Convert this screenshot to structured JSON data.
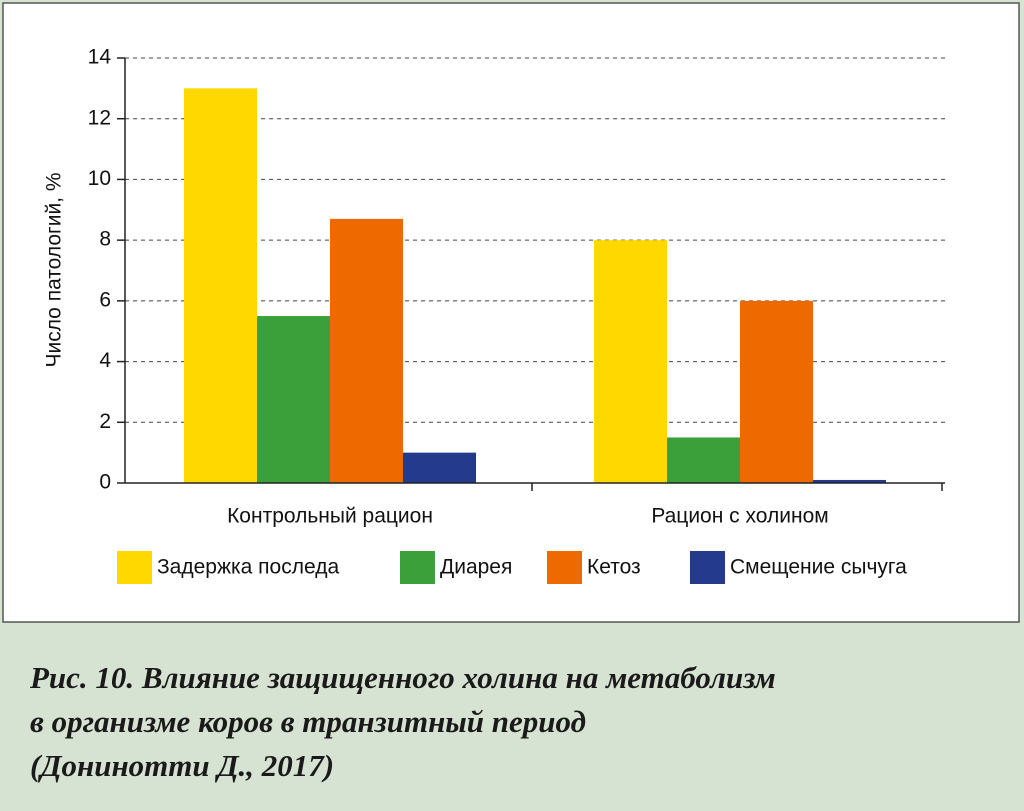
{
  "chart_data": {
    "type": "bar",
    "y_label": "Число патологий, %",
    "categories": [
      "Контрольный рацион",
      "Рацион с холином"
    ],
    "series": [
      {
        "name": "Задержка последа",
        "color": "#ffd800",
        "values": [
          13,
          8
        ]
      },
      {
        "name": "Диарея",
        "color": "#3ca03a",
        "values": [
          5.5,
          1.5
        ]
      },
      {
        "name": "Кетоз",
        "color": "#ee6a00",
        "values": [
          8.7,
          6
        ]
      },
      {
        "name": "Смещение сычуга",
        "color": "#243a8c",
        "values": [
          1,
          0.1
        ]
      }
    ],
    "ylim": [
      0,
      14
    ],
    "yticks": [
      0,
      2,
      4,
      6,
      8,
      10,
      12,
      14
    ],
    "grid": true,
    "legend": "bottom",
    "caption": [
      "Рис. 10. Влияние защищенного холина на метаболизм",
      "в организме коров в транзитный период",
      "(Донинотти Д., 2017)"
    ]
  }
}
